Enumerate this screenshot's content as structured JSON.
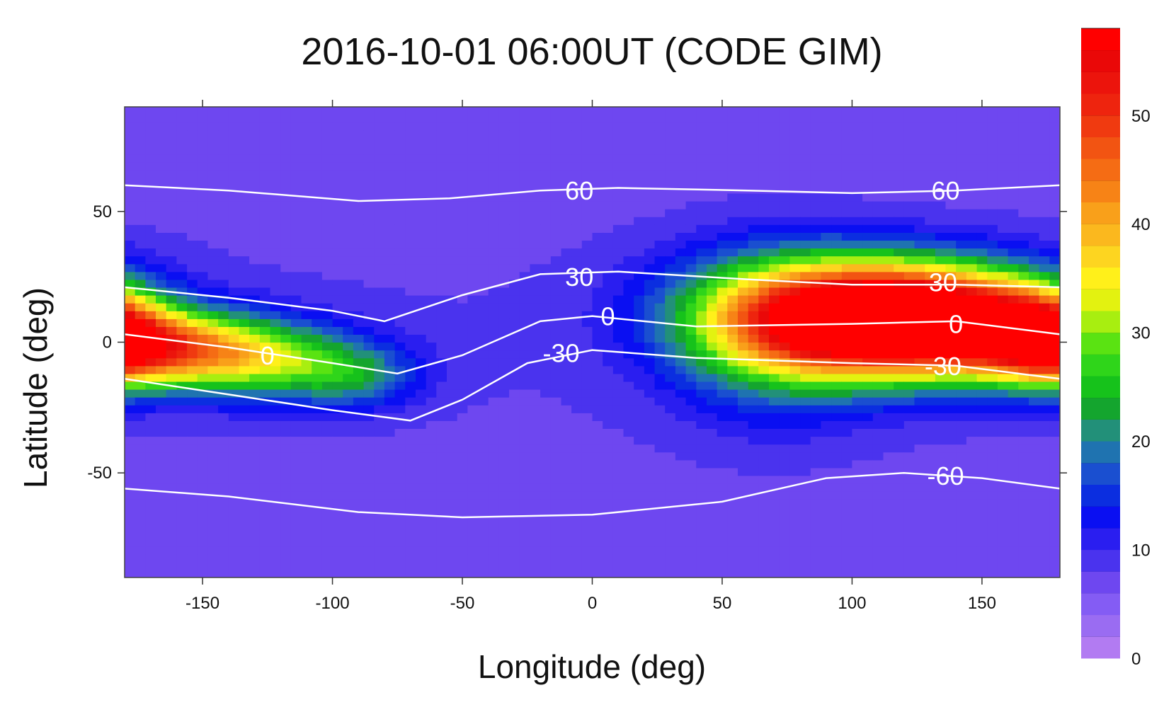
{
  "chart_data": {
    "type": "heatmap",
    "title": "2016-10-01 06:00UT (CODE GIM)",
    "xlabel": "Longitude (deg)",
    "ylabel": "Latitude (deg)",
    "xlim": [
      -180,
      180
    ],
    "ylim": [
      -90,
      90
    ],
    "x_ticks": [
      -150,
      -100,
      -50,
      0,
      50,
      100,
      150
    ],
    "y_ticks": [
      -50,
      0,
      50
    ],
    "colorbar": {
      "ticks": [
        0,
        10,
        20,
        30,
        40,
        50
      ],
      "range": [
        0,
        58
      ],
      "step": 2,
      "colors": [
        "#b27bf2",
        "#9a6cf2",
        "#845cf4",
        "#6e47f0",
        "#4a33ee",
        "#2a1ef0",
        "#0a0ff2",
        "#0b2ee0",
        "#1a4fd0",
        "#1f73b0",
        "#229079",
        "#14a52e",
        "#16c21b",
        "#2fd51a",
        "#5ae312",
        "#a8ee10",
        "#e3f210",
        "#fff01a",
        "#fdd520",
        "#fbb81e",
        "#f9a01a",
        "#f78316",
        "#f56c14",
        "#f25412",
        "#f03a10",
        "#ee240e",
        "#ec140c",
        "#ea0808",
        "#ff0000"
      ]
    },
    "sources": [
      {
        "lon": 118,
        "lat": 8,
        "amp": 54,
        "sx": 38,
        "sy": 14
      },
      {
        "lon": 90,
        "lat": 12,
        "amp": 18,
        "sx": 40,
        "sy": 16
      },
      {
        "lon": 70,
        "lat": 2,
        "amp": 12,
        "sx": 28,
        "sy": 22
      },
      {
        "lon": 150,
        "lat": 8,
        "amp": 12,
        "sx": 25,
        "sy": 14
      },
      {
        "lon": -165,
        "lat": -2,
        "amp": 32,
        "sx": 30,
        "sy": 10
      },
      {
        "lon": -120,
        "lat": -8,
        "amp": 16,
        "sx": 28,
        "sy": 10
      },
      {
        "lon": -90,
        "lat": -14,
        "amp": 8,
        "sx": 16,
        "sy": 8
      },
      {
        "lon": 175,
        "lat": 2,
        "amp": 20,
        "sx": 14,
        "sy": 12
      }
    ],
    "base": 6,
    "magnetic_lines": [
      {
        "label": "60",
        "points": [
          [
            -180,
            60
          ],
          [
            -140,
            58
          ],
          [
            -90,
            54
          ],
          [
            -55,
            55
          ],
          [
            -20,
            58
          ],
          [
            10,
            59
          ],
          [
            60,
            58
          ],
          [
            100,
            57
          ],
          [
            140,
            58
          ],
          [
            180,
            60
          ]
        ],
        "label_at": [
          [
            -5,
            58
          ],
          [
            136,
            58
          ]
        ]
      },
      {
        "label": "30",
        "points": [
          [
            -180,
            21
          ],
          [
            -140,
            17
          ],
          [
            -100,
            12
          ],
          [
            -80,
            8
          ],
          [
            -50,
            18
          ],
          [
            -20,
            26
          ],
          [
            10,
            27
          ],
          [
            60,
            24
          ],
          [
            100,
            22
          ],
          [
            140,
            22
          ],
          [
            180,
            21
          ]
        ],
        "label_at": [
          [
            -5,
            25
          ],
          [
            135,
            23
          ]
        ]
      },
      {
        "label": "0",
        "points": [
          [
            -180,
            3
          ],
          [
            -140,
            -2
          ],
          [
            -100,
            -8
          ],
          [
            -75,
            -12
          ],
          [
            -50,
            -5
          ],
          [
            -20,
            8
          ],
          [
            0,
            10
          ],
          [
            40,
            6
          ],
          [
            100,
            7
          ],
          [
            140,
            8
          ],
          [
            180,
            3
          ]
        ],
        "label_at": [
          [
            -125,
            -5
          ],
          [
            6,
            10
          ],
          [
            140,
            7
          ]
        ]
      },
      {
        "label": "-30",
        "points": [
          [
            -180,
            -14
          ],
          [
            -140,
            -20
          ],
          [
            -100,
            -26
          ],
          [
            -70,
            -30
          ],
          [
            -50,
            -22
          ],
          [
            -25,
            -8
          ],
          [
            0,
            -3
          ],
          [
            40,
            -6
          ],
          [
            100,
            -8
          ],
          [
            140,
            -9
          ],
          [
            180,
            -14
          ]
        ],
        "label_at": [
          [
            -12,
            -4
          ],
          [
            135,
            -9
          ]
        ]
      },
      {
        "label": "-60",
        "points": [
          [
            -180,
            -56
          ],
          [
            -140,
            -59
          ],
          [
            -90,
            -65
          ],
          [
            -50,
            -67
          ],
          [
            0,
            -66
          ],
          [
            50,
            -61
          ],
          [
            90,
            -52
          ],
          [
            120,
            -50
          ],
          [
            150,
            -52
          ],
          [
            180,
            -56
          ]
        ],
        "label_at": [
          [
            136,
            -51
          ]
        ]
      }
    ]
  }
}
